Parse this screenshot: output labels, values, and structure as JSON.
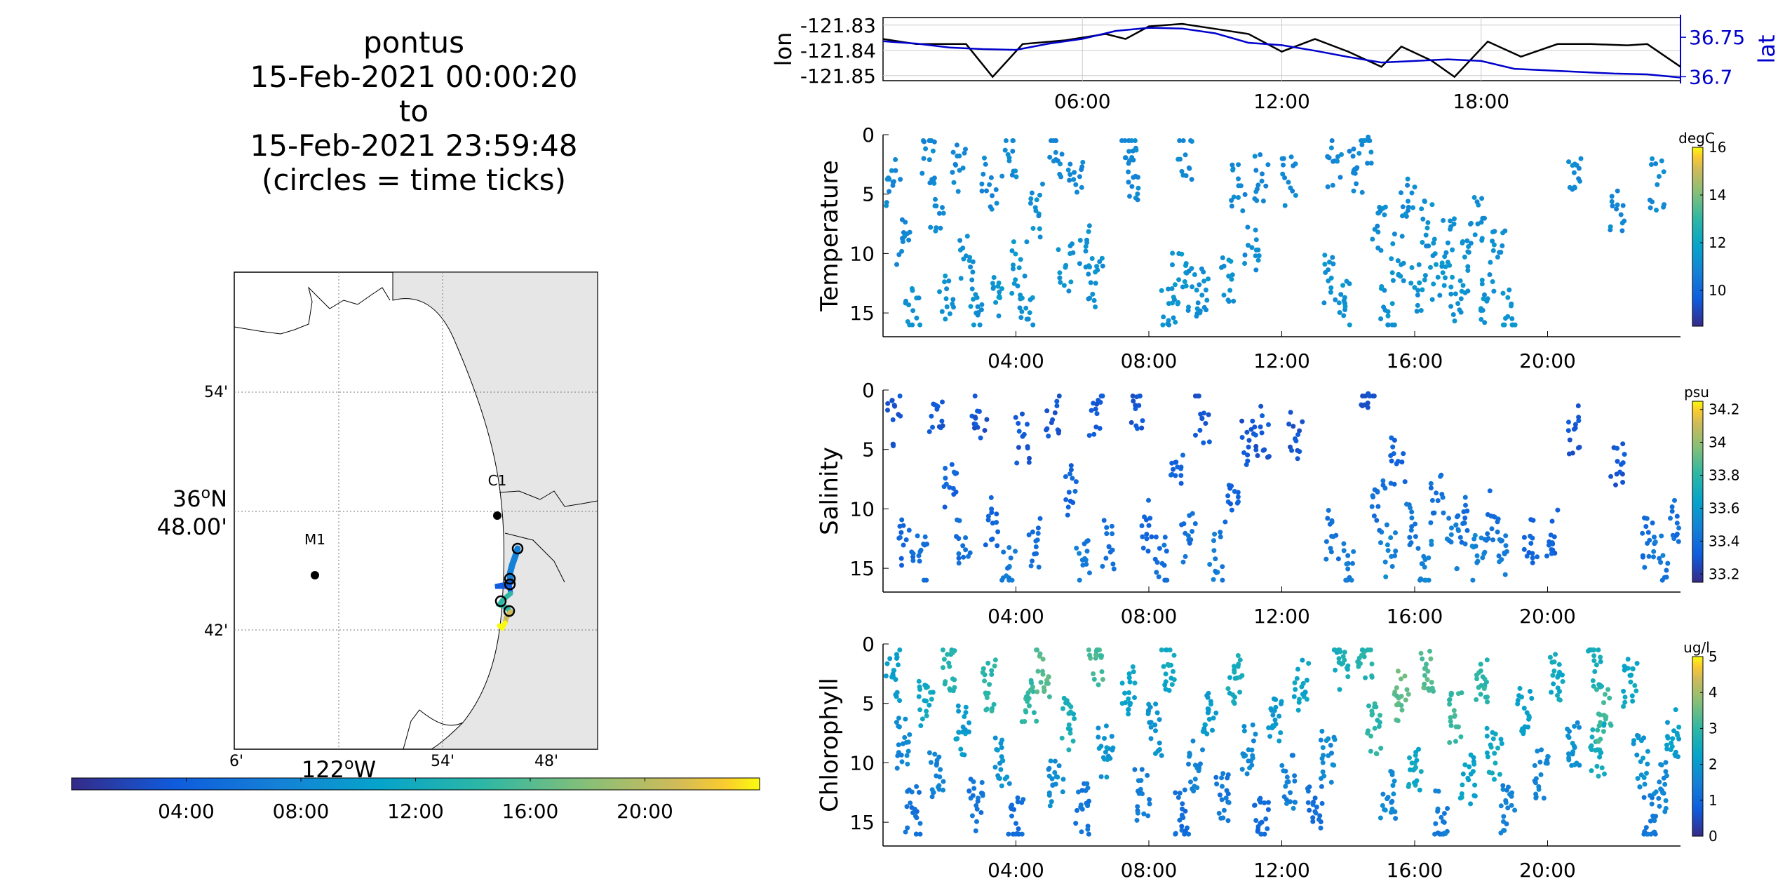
{
  "title": {
    "line1": "pontus",
    "line2": "15-Feb-2021 00:00:20",
    "line3": "to",
    "line4": "15-Feb-2021 23:59:48",
    "line5": "(circles = time ticks)"
  },
  "map": {
    "lat_labels": [
      "54'",
      "36°N 48.00'",
      "42'"
    ],
    "lon_labels": [
      "6'",
      "122°W",
      "54'",
      "48'"
    ],
    "stations": [
      {
        "name": "M1"
      },
      {
        "name": "C1"
      }
    ],
    "land_color": "#e6e6e6",
    "colorbar": {
      "ticks": [
        "04:00",
        "08:00",
        "12:00",
        "16:00",
        "20:00"
      ]
    }
  },
  "chart_data": [
    {
      "type": "line",
      "panel": "lon_lat",
      "ylabel": "lon",
      "ylabel_right": "lat",
      "x_ticks": [
        "06:00",
        "12:00",
        "18:00"
      ],
      "y_ticks": [
        "-121.83",
        "-121.84",
        "-121.85"
      ],
      "y_ticks_right": [
        "36.75",
        "36.7"
      ],
      "ylim": [
        -121.852,
        -121.827
      ],
      "ylim_right": [
        36.695,
        36.775
      ],
      "xlim": [
        0,
        24
      ],
      "grid": true,
      "series": [
        {
          "color": "#000000",
          "x": [
            0,
            1,
            2.5,
            3.3,
            4.2,
            5.5,
            6.7,
            7.3,
            8,
            9,
            10,
            11,
            12,
            13,
            14,
            15,
            15.6,
            16.5,
            17.2,
            18.2,
            19.2,
            20.3,
            21.3,
            22.4,
            23,
            24
          ],
          "y": [
            -121.8355,
            -121.8375,
            -121.8375,
            -121.8505,
            -121.8375,
            -121.836,
            -121.8335,
            -121.8355,
            -121.8305,
            -121.8295,
            -121.8315,
            -121.8335,
            -121.8405,
            -121.8355,
            -121.8405,
            -121.8465,
            -121.8385,
            -121.844,
            -121.8505,
            -121.8365,
            -121.8425,
            -121.8375,
            -121.8375,
            -121.838,
            -121.8375,
            -121.8465
          ]
        },
        {
          "color": "#0000cc",
          "x": [
            0,
            1,
            2,
            3,
            4,
            5,
            6,
            7,
            8,
            9,
            10,
            11,
            12,
            13,
            14,
            15,
            16,
            17,
            18,
            19,
            20,
            21,
            22,
            23,
            24
          ],
          "y": [
            36.745,
            36.742,
            36.737,
            36.735,
            36.734,
            36.742,
            36.748,
            36.758,
            36.762,
            36.761,
            36.755,
            36.743,
            36.74,
            36.733,
            36.725,
            36.718,
            36.72,
            36.722,
            36.72,
            36.71,
            36.708,
            36.706,
            36.704,
            36.703,
            36.699
          ]
        }
      ]
    },
    {
      "type": "scatter",
      "panel": "temperature",
      "ylabel": "Temperature",
      "x_ticks": [
        "04:00",
        "08:00",
        "12:00",
        "16:00",
        "20:00"
      ],
      "y_ticks": [
        "0",
        "5",
        "10",
        "15"
      ],
      "ylim": [
        0,
        17
      ],
      "xlim": [
        0,
        24
      ],
      "colorbar": {
        "unit": "degC",
        "ticks": [
          "16",
          "14",
          "12",
          "10"
        ],
        "range": [
          8.5,
          16
        ]
      },
      "points": [
        [
          0.3,
          4,
          11
        ],
        [
          0.6,
          9,
          11
        ],
        [
          0.9,
          14.8,
          11.2
        ],
        [
          1.4,
          2.1,
          11
        ],
        [
          1.6,
          6,
          11
        ],
        [
          1.9,
          13.8,
          11.3
        ],
        [
          2.3,
          3,
          11
        ],
        [
          2.5,
          10.2,
          11.2
        ],
        [
          2.8,
          15,
          11.3
        ],
        [
          3.2,
          4.2,
          11
        ],
        [
          3.5,
          13.6,
          11.4
        ],
        [
          3.8,
          2.2,
          11.1
        ],
        [
          4.1,
          11.2,
          11.4
        ],
        [
          4.3,
          14.6,
          11.3
        ],
        [
          4.6,
          6.4,
          11.2
        ],
        [
          5.2,
          1.5,
          11
        ],
        [
          5.5,
          11,
          11.3
        ],
        [
          5.8,
          4.2,
          11
        ],
        [
          6.1,
          9.8,
          11.2
        ],
        [
          6.4,
          12.5,
          11.2
        ],
        [
          7.4,
          1.4,
          11
        ],
        [
          7.6,
          3.5,
          11
        ],
        [
          8.6,
          14.2,
          11.3
        ],
        [
          8.9,
          12.2,
          11.4
        ],
        [
          9.1,
          1.7,
          11
        ],
        [
          9.3,
          12.8,
          11.2
        ],
        [
          9.6,
          13.5,
          11.2
        ],
        [
          10.4,
          11.9,
          11.3
        ],
        [
          10.7,
          4.3,
          11
        ],
        [
          11.1,
          9.5,
          11.1
        ],
        [
          11.4,
          3.9,
          11
        ],
        [
          12.2,
          4,
          11
        ],
        [
          13.4,
          12.3,
          11.3
        ],
        [
          13.6,
          2.2,
          11
        ],
        [
          13.9,
          14.2,
          11.3
        ],
        [
          14.2,
          2.9,
          11
        ],
        [
          14.6,
          0.2,
          11
        ],
        [
          14.9,
          8.2,
          11.1
        ],
        [
          15.2,
          14.9,
          11.3
        ],
        [
          15.5,
          10.6,
          11.2
        ],
        [
          15.8,
          5.6,
          11.1
        ],
        [
          16.1,
          13.1,
          11.3
        ],
        [
          16.4,
          7.4,
          11.2
        ],
        [
          16.7,
          12,
          11.3
        ],
        [
          17.0,
          9.1,
          11.2
        ],
        [
          17.3,
          14.2,
          11.3
        ],
        [
          17.6,
          11.1,
          11.3
        ],
        [
          17.9,
          7.5,
          11.1
        ],
        [
          18.2,
          13.8,
          11.3
        ],
        [
          18.5,
          10.3,
          11.2
        ],
        [
          18.8,
          15.3,
          11.4
        ],
        [
          20.8,
          3.2,
          11
        ],
        [
          22.1,
          5.9,
          11
        ],
        [
          23.3,
          4.2,
          11
        ]
      ]
    },
    {
      "type": "scatter",
      "panel": "salinity",
      "ylabel": "Salinity",
      "x_ticks": [
        "04:00",
        "08:00",
        "12:00",
        "16:00",
        "20:00"
      ],
      "y_ticks": [
        "0",
        "5",
        "10",
        "15"
      ],
      "ylim": [
        0,
        17
      ],
      "xlim": [
        0,
        24
      ],
      "colorbar": {
        "unit": "psu",
        "ticks": [
          "34.2",
          "34",
          "33.8",
          "33.6",
          "33.4",
          "33.2"
        ],
        "range": [
          33.15,
          34.25
        ]
      },
      "points": [
        [
          0.3,
          2.5,
          33.3
        ],
        [
          0.7,
          12.6,
          33.35
        ],
        [
          1.1,
          14.4,
          33.4
        ],
        [
          1.6,
          1.3,
          33.3
        ],
        [
          2.0,
          8.2,
          33.35
        ],
        [
          2.4,
          13.1,
          33.4
        ],
        [
          2.9,
          1.8,
          33.3
        ],
        [
          3.3,
          11.2,
          33.35
        ],
        [
          3.8,
          14.9,
          33.45
        ],
        [
          4.2,
          3.9,
          33.3
        ],
        [
          4.6,
          12.7,
          33.4
        ],
        [
          5.1,
          2.5,
          33.3
        ],
        [
          5.6,
          8.6,
          33.35
        ],
        [
          6.0,
          14.3,
          33.45
        ],
        [
          6.4,
          1.6,
          33.3
        ],
        [
          6.8,
          13.2,
          33.4
        ],
        [
          7.7,
          1.3,
          33.3
        ],
        [
          8.0,
          11.4,
          33.35
        ],
        [
          8.4,
          14.6,
          33.4
        ],
        [
          8.8,
          7.2,
          33.35
        ],
        [
          9.2,
          12.6,
          33.4
        ],
        [
          9.6,
          2.4,
          33.3
        ],
        [
          10.0,
          14.2,
          33.45
        ],
        [
          10.5,
          10.1,
          33.35
        ],
        [
          11.0,
          4.8,
          33.3
        ],
        [
          11.4,
          3.6,
          33.3
        ],
        [
          12.4,
          4.1,
          33.3
        ],
        [
          13.5,
          12.3,
          33.4
        ],
        [
          14.0,
          14.6,
          33.45
        ],
        [
          14.6,
          0.3,
          33.3
        ],
        [
          14.9,
          9.8,
          33.4
        ],
        [
          15.2,
          13.5,
          33.5
        ],
        [
          15.5,
          6.0,
          33.35
        ],
        [
          15.9,
          11.8,
          33.45
        ],
        [
          16.3,
          14.9,
          33.5
        ],
        [
          16.7,
          9.3,
          33.4
        ],
        [
          17.1,
          12.8,
          33.45
        ],
        [
          17.5,
          11.2,
          33.4
        ],
        [
          17.9,
          14.4,
          33.5
        ],
        [
          18.3,
          10.6,
          33.4
        ],
        [
          18.7,
          13.7,
          33.45
        ],
        [
          19.5,
          12.9,
          33.35
        ],
        [
          20.1,
          12.2,
          33.35
        ],
        [
          20.8,
          3.3,
          33.3
        ],
        [
          22.1,
          6.0,
          33.3
        ],
        [
          23.0,
          12.9,
          33.4
        ],
        [
          23.4,
          14.5,
          33.45
        ],
        [
          23.9,
          11.2,
          33.4
        ]
      ]
    },
    {
      "type": "scatter",
      "panel": "chlorophyll",
      "ylabel": "Chlorophyll",
      "x_ticks": [
        "04:00",
        "08:00",
        "12:00",
        "16:00",
        "20:00"
      ],
      "y_ticks": [
        "0",
        "5",
        "10",
        "15"
      ],
      "ylim": [
        0,
        17
      ],
      "xlim": [
        0,
        24
      ],
      "colorbar": {
        "unit": "ug/l",
        "ticks": [
          "5",
          "4",
          "3",
          "2",
          "1",
          "0"
        ],
        "range": [
          0,
          5
        ]
      },
      "points": [
        [
          0.3,
          2.6,
          2.2
        ],
        [
          0.6,
          8.4,
          1.6
        ],
        [
          0.9,
          14.2,
          1.2
        ],
        [
          1.3,
          4.8,
          2.4
        ],
        [
          1.6,
          11.1,
          1.5
        ],
        [
          2.0,
          1.9,
          2.8
        ],
        [
          2.4,
          7.4,
          2.1
        ],
        [
          2.8,
          13.6,
          1.3
        ],
        [
          3.2,
          3.4,
          2.9
        ],
        [
          3.6,
          9.8,
          1.9
        ],
        [
          4.0,
          15.1,
          1.1
        ],
        [
          4.4,
          5.2,
          3.0
        ],
        [
          4.8,
          2.3,
          3.3
        ],
        [
          5.2,
          11.8,
          1.7
        ],
        [
          5.6,
          6.8,
          2.6
        ],
        [
          6.0,
          13.9,
          1.3
        ],
        [
          6.4,
          1.2,
          3.2
        ],
        [
          6.7,
          9.1,
          1.9
        ],
        [
          7.4,
          4.1,
          2.3
        ],
        [
          7.8,
          12.6,
          1.4
        ],
        [
          8.2,
          7.3,
          1.9
        ],
        [
          8.6,
          1.8,
          2.4
        ],
        [
          9.0,
          14.4,
          1.1
        ],
        [
          9.4,
          10.2,
          1.6
        ],
        [
          9.8,
          5.5,
          2.1
        ],
        [
          10.2,
          13.1,
          1.3
        ],
        [
          10.6,
          2.9,
          2.5
        ],
        [
          11.0,
          8.9,
          1.7
        ],
        [
          11.4,
          15.0,
          1.0
        ],
        [
          11.8,
          6.4,
          2.0
        ],
        [
          12.2,
          11.6,
          1.5
        ],
        [
          12.6,
          3.6,
          2.3
        ],
        [
          13.0,
          14.1,
          1.1
        ],
        [
          13.4,
          9.4,
          1.7
        ],
        [
          13.8,
          1.7,
          2.6
        ],
        [
          14.5,
          0.6,
          2.8
        ],
        [
          14.8,
          7.1,
          2.9
        ],
        [
          15.2,
          12.9,
          1.6
        ],
        [
          15.6,
          4.4,
          3.4
        ],
        [
          16.0,
          10.5,
          2.4
        ],
        [
          16.4,
          2.3,
          3.3
        ],
        [
          16.8,
          14.6,
          1.4
        ],
        [
          17.2,
          6.1,
          3.1
        ],
        [
          17.6,
          11.3,
          2.2
        ],
        [
          18.0,
          3.5,
          2.9
        ],
        [
          18.4,
          9.2,
          2.4
        ],
        [
          18.8,
          13.8,
          1.5
        ],
        [
          19.3,
          5.4,
          2.2
        ],
        [
          19.8,
          11.0,
          1.6
        ],
        [
          20.3,
          2.8,
          2.4
        ],
        [
          20.8,
          8.6,
          1.8
        ],
        [
          21.4,
          1.4,
          2.6
        ],
        [
          21.5,
          8.9,
          2.4
        ],
        [
          21.7,
          6.0,
          3.1
        ],
        [
          22.5,
          3.2,
          2.4
        ],
        [
          22.8,
          9.9,
          1.9
        ],
        [
          23.1,
          14.9,
          1.3
        ],
        [
          23.4,
          12.2,
          1.6
        ],
        [
          23.8,
          7.3,
          2.1
        ]
      ]
    }
  ]
}
